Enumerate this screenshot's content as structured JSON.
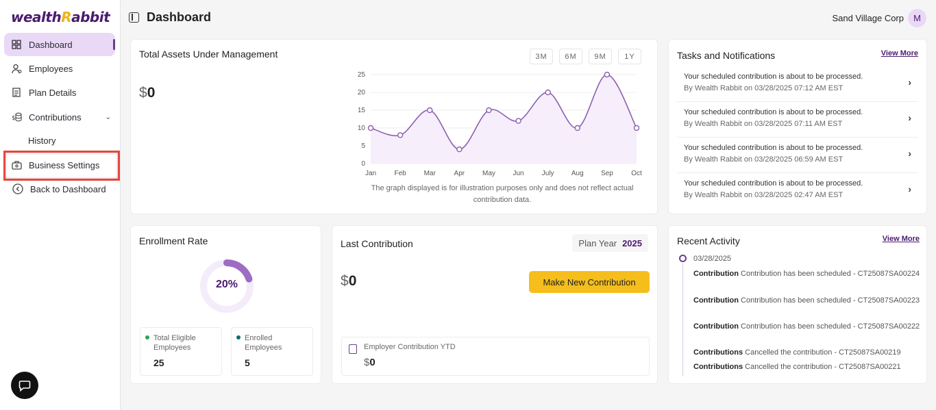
{
  "brand": {
    "logo_left": "wealth",
    "logo_right": "Rabbit"
  },
  "sidebar": {
    "items": [
      {
        "label": "Dashboard",
        "icon": "grid-icon"
      },
      {
        "label": "Employees",
        "icon": "users-icon"
      },
      {
        "label": "Plan Details",
        "icon": "document-icon"
      },
      {
        "label": "Contributions",
        "icon": "coins-icon"
      },
      {
        "label": "History"
      },
      {
        "label": "Business Settings",
        "icon": "briefcase-icon"
      },
      {
        "label": "Back to Dashboard",
        "icon": "back-circle-icon"
      }
    ]
  },
  "header": {
    "title": "Dashboard",
    "company": "Sand Village Corp",
    "avatar": "M"
  },
  "assets": {
    "title": "Total Assets Under Management",
    "currency": "$",
    "amount": "0",
    "ranges": [
      "3M",
      "6M",
      "9M",
      "1Y"
    ],
    "note": "The graph displayed is for illustration purposes only and does not reflect actual contribution data."
  },
  "chart_data": {
    "type": "area",
    "categories": [
      "Jan",
      "Feb",
      "Mar",
      "Apr",
      "May",
      "Jun",
      "July",
      "Aug",
      "Sep",
      "Oct"
    ],
    "values": [
      10,
      8,
      15,
      4,
      15,
      12,
      20,
      10,
      25,
      10
    ],
    "ylim": [
      0,
      25
    ],
    "yticks": [
      0,
      5,
      10,
      15,
      20,
      25
    ],
    "colors": {
      "line": "#8b5fb0",
      "fill": "#f6eefb"
    }
  },
  "tasks": {
    "title": "Tasks and Notifications",
    "view_more": "View More",
    "items": [
      {
        "title": "Your scheduled contribution is about to be processed.",
        "meta": "By Wealth Rabbit on 03/28/2025 07:12 AM EST"
      },
      {
        "title": "Your scheduled contribution is about to be processed.",
        "meta": "By Wealth Rabbit on 03/28/2025 07:11 AM EST"
      },
      {
        "title": "Your scheduled contribution is about to be processed.",
        "meta": "By Wealth Rabbit on 03/28/2025 06:59 AM EST"
      },
      {
        "title": "Your scheduled contribution is about to be processed.",
        "meta": "By Wealth Rabbit on 03/28/2025 02:47 AM EST"
      }
    ]
  },
  "enrollment": {
    "title": "Enrollment Rate",
    "rate_label": "20%",
    "rate": 0.2,
    "eligible_label": "Total Eligible Employees",
    "eligible_value": "25",
    "enrolled_label": "Enrolled Employees",
    "enrolled_value": "5",
    "colors": {
      "eligible": "#2ea44f",
      "enrolled": "#0d6e6e"
    }
  },
  "last_contribution": {
    "title": "Last Contribution",
    "plan_year_label": "Plan Year",
    "plan_year": "2025",
    "currency": "$",
    "amount": "0",
    "button": "Make New Contribution",
    "ytd_label": "Employer Contribution YTD",
    "ytd_currency": "$",
    "ytd_amount": "0"
  },
  "recent": {
    "title": "Recent Activity",
    "view_more": "View More",
    "date": "03/28/2025",
    "items": [
      {
        "who": "Contribution",
        "text": "Contribution has been scheduled - CT25087SA00224"
      },
      {
        "who": "Contribution",
        "text": "Contribution has been scheduled - CT25087SA00223"
      },
      {
        "who": "Contribution",
        "text": "Contribution has been scheduled - CT25087SA00222"
      },
      {
        "who": "Contributions",
        "text": "Cancelled the contribution - CT25087SA00219"
      },
      {
        "who": "Contributions",
        "text": "Cancelled the contribution - CT25087SA00221"
      }
    ]
  }
}
